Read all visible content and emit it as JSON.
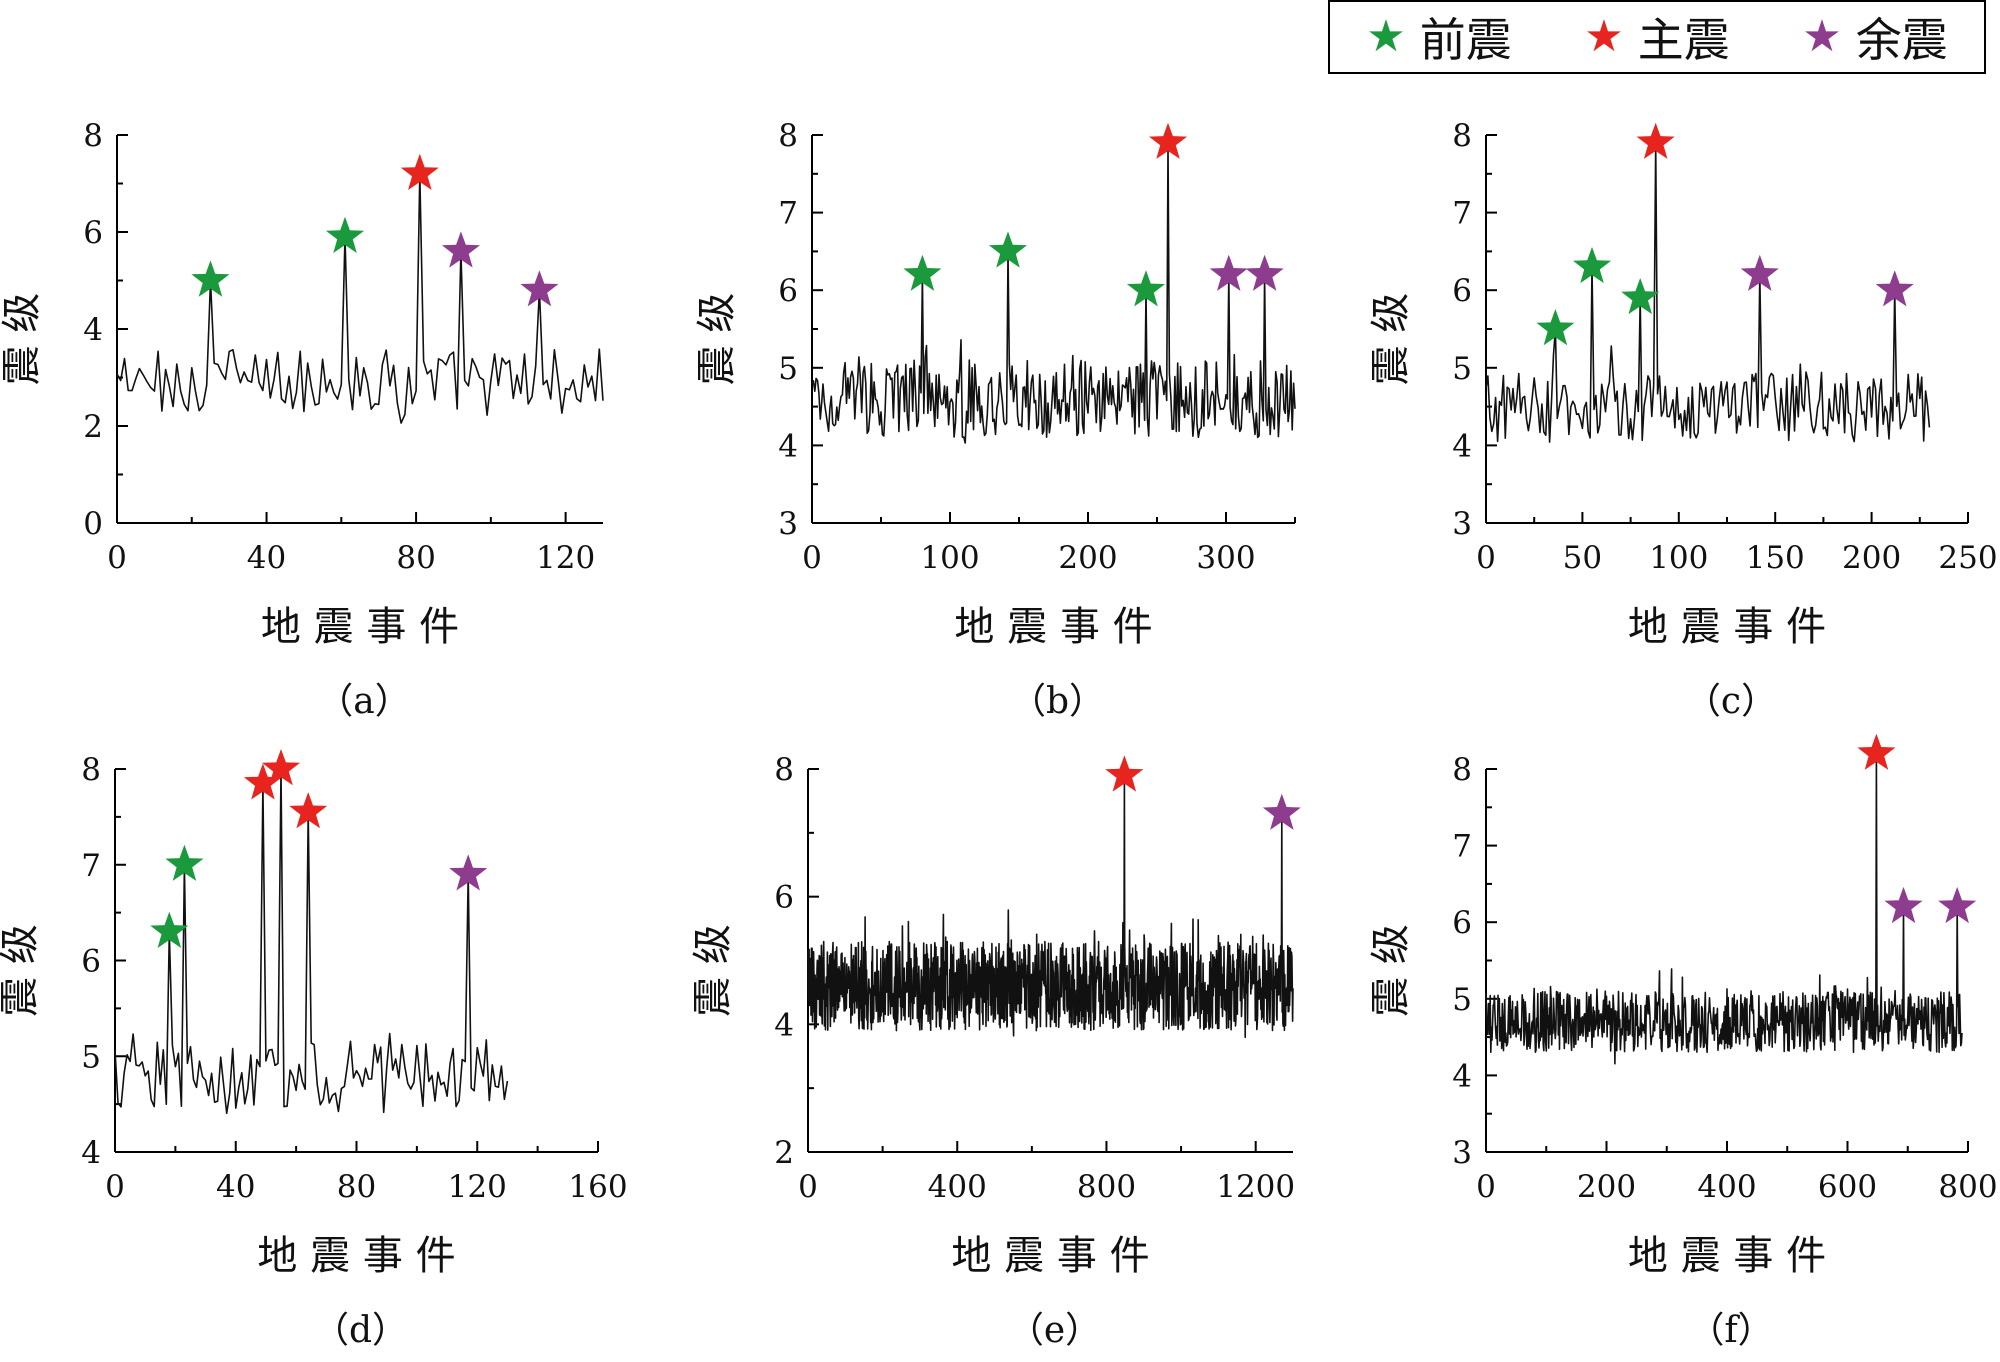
{
  "legend": {
    "items": [
      {
        "label": "前震",
        "color": "#1a9a3c",
        "icon": "star-icon"
      },
      {
        "label": "主震",
        "color": "#e8241e",
        "icon": "star-icon"
      },
      {
        "label": "余震",
        "color": "#8e3c8e",
        "icon": "star-icon"
      }
    ]
  },
  "chart_data": [
    {
      "type": "line",
      "panel_label": "（a）",
      "xlabel": "地 震 事 件",
      "ylabel": "震 级",
      "xlim": [
        0,
        130
      ],
      "ylim": [
        0,
        8
      ],
      "xticks": [
        0,
        40,
        80,
        120
      ],
      "yticks": [
        0,
        2,
        4,
        6,
        8
      ],
      "grid": false,
      "series": [
        {
          "n_events": 130,
          "baseline": 2.9,
          "spread": 0.7
        }
      ],
      "markers": [
        {
          "x": 25,
          "y": 5.0,
          "kind": "前震"
        },
        {
          "x": 61,
          "y": 5.9,
          "kind": "前震"
        },
        {
          "x": 81,
          "y": 7.2,
          "kind": "主震"
        },
        {
          "x": 92,
          "y": 5.6,
          "kind": "余震"
        },
        {
          "x": 113,
          "y": 4.8,
          "kind": "余震"
        }
      ]
    },
    {
      "type": "line",
      "panel_label": "（b）",
      "xlabel": "地 震 事 件",
      "ylabel": "震 级",
      "xlim": [
        0,
        350
      ],
      "ylim": [
        3,
        8
      ],
      "xticks": [
        0,
        100,
        200,
        300
      ],
      "yticks": [
        3,
        4,
        5,
        6,
        7,
        8
      ],
      "grid": false,
      "series": [
        {
          "n_events": 350,
          "baseline": 4.6,
          "spread": 0.5
        }
      ],
      "markers": [
        {
          "x": 80,
          "y": 6.2,
          "kind": "前震"
        },
        {
          "x": 142,
          "y": 6.5,
          "kind": "前震"
        },
        {
          "x": 242,
          "y": 6.0,
          "kind": "前震"
        },
        {
          "x": 258,
          "y": 7.9,
          "kind": "主震"
        },
        {
          "x": 302,
          "y": 6.2,
          "kind": "余震"
        },
        {
          "x": 328,
          "y": 6.2,
          "kind": "余震"
        }
      ]
    },
    {
      "type": "line",
      "panel_label": "（c）",
      "xlabel": "地 震 事 件",
      "ylabel": "震 级",
      "xlim": [
        0,
        250
      ],
      "ylim": [
        3,
        8
      ],
      "xticks": [
        0,
        50,
        100,
        150,
        200,
        250
      ],
      "yticks": [
        3,
        4,
        5,
        6,
        7,
        8
      ],
      "grid": false,
      "series": [
        {
          "n_events": 230,
          "baseline": 4.5,
          "spread": 0.45
        }
      ],
      "markers": [
        {
          "x": 36,
          "y": 5.5,
          "kind": "前震"
        },
        {
          "x": 55,
          "y": 6.3,
          "kind": "前震"
        },
        {
          "x": 80,
          "y": 5.9,
          "kind": "前震"
        },
        {
          "x": 88,
          "y": 7.9,
          "kind": "主震"
        },
        {
          "x": 142,
          "y": 6.2,
          "kind": "余震"
        },
        {
          "x": 212,
          "y": 6.0,
          "kind": "余震"
        }
      ]
    },
    {
      "type": "line",
      "panel_label": "（d）",
      "xlabel": "地 震 事 件",
      "ylabel": "震 级",
      "xlim": [
        0,
        160
      ],
      "ylim": [
        4,
        8
      ],
      "xticks": [
        0,
        40,
        80,
        120,
        160
      ],
      "yticks": [
        4,
        5,
        6,
        7,
        8
      ],
      "grid": false,
      "series": [
        {
          "n_events": 130,
          "baseline": 4.8,
          "spread": 0.4
        }
      ],
      "markers": [
        {
          "x": 18,
          "y": 6.3,
          "kind": "前震"
        },
        {
          "x": 23,
          "y": 7.0,
          "kind": "前震"
        },
        {
          "x": 49,
          "y": 7.85,
          "kind": "主震"
        },
        {
          "x": 55,
          "y": 8.0,
          "kind": "主震"
        },
        {
          "x": 64,
          "y": 7.55,
          "kind": "主震"
        },
        {
          "x": 117,
          "y": 6.9,
          "kind": "余震"
        }
      ]
    },
    {
      "type": "line",
      "panel_label": "（e）",
      "xlabel": "地 震 事 件",
      "ylabel": "震 级",
      "xlim": [
        0,
        1300
      ],
      "ylim": [
        2,
        8
      ],
      "xticks": [
        0,
        400,
        800,
        1200
      ],
      "yticks": [
        2,
        4,
        6,
        8
      ],
      "grid": false,
      "series": [
        {
          "n_events": 1300,
          "baseline": 4.6,
          "spread": 0.7
        }
      ],
      "markers": [
        {
          "x": 848,
          "y": 7.9,
          "kind": "主震"
        },
        {
          "x": 1270,
          "y": 7.3,
          "kind": "余震"
        }
      ]
    },
    {
      "type": "line",
      "panel_label": "（f）",
      "xlabel": "地 震 事 件",
      "ylabel": "震 级",
      "xlim": [
        0,
        800
      ],
      "ylim": [
        3,
        8
      ],
      "xticks": [
        0,
        200,
        400,
        600,
        800
      ],
      "yticks": [
        3,
        4,
        5,
        6,
        7,
        8
      ],
      "grid": false,
      "series": [
        {
          "n_events": 790,
          "baseline": 4.7,
          "spread": 0.4
        }
      ],
      "markers": [
        {
          "x": 648,
          "y": 8.2,
          "kind": "主震"
        },
        {
          "x": 693,
          "y": 6.2,
          "kind": "余震"
        },
        {
          "x": 782,
          "y": 6.2,
          "kind": "余震"
        }
      ]
    }
  ]
}
